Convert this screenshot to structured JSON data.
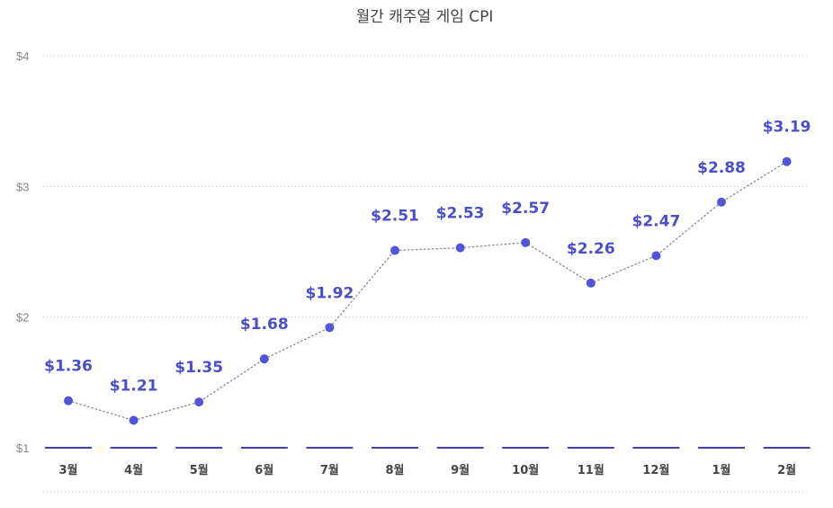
{
  "chart_data": {
    "type": "line",
    "title": "월간 캐주얼 게임 CPI",
    "categories": [
      "3월",
      "4월",
      "5월",
      "6월",
      "7월",
      "8월",
      "9월",
      "10월",
      "11월",
      "12월",
      "1월",
      "2월"
    ],
    "series": [
      {
        "values": [
          1.36,
          1.21,
          1.35,
          1.68,
          1.92,
          2.51,
          2.53,
          2.57,
          2.26,
          2.47,
          2.88,
          3.19
        ],
        "labels": [
          "$1.36",
          "$1.21",
          "$1.35",
          "$1.68",
          "$1.92",
          "$2.51",
          "$2.53",
          "$2.57",
          "$2.26",
          "$2.47",
          "$2.88",
          "$3.19"
        ]
      }
    ],
    "yticks": [
      1,
      2,
      3,
      4
    ],
    "ytick_labels": [
      "$1",
      "$2",
      "$3",
      "$4"
    ],
    "ylim": [
      1,
      4
    ],
    "grid": true,
    "line_style": "dotted",
    "colors": {
      "point": "#5155d9",
      "line": "#8a8a9a",
      "label": "#4a4fc9",
      "baseline": "#3f43b0",
      "grid": "#cccccc"
    }
  }
}
